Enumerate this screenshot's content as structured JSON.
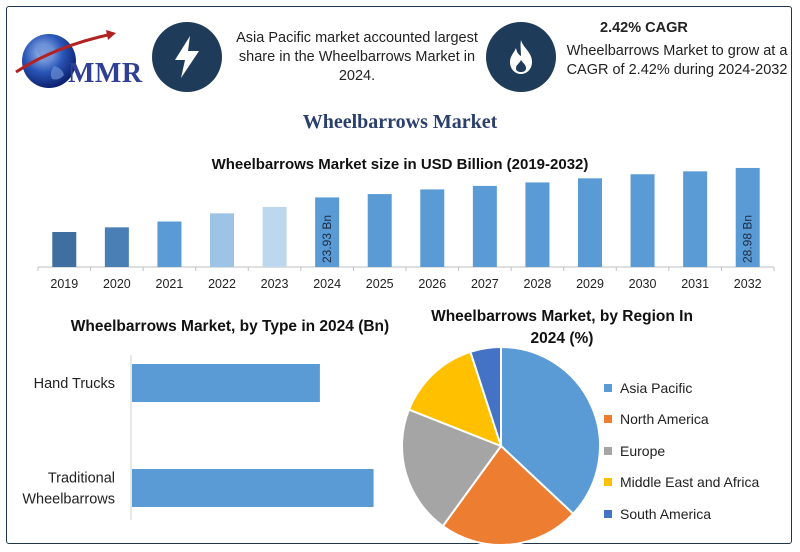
{
  "header": {
    "logo_text": "MMR",
    "info1_text": "Asia Pacific market accounted largest share in the Wheelbarrows Market in 2024.",
    "info2_title": "2.42% CAGR",
    "info2_text": "Wheelbarrows Market to grow at a CAGR of 2.42% during 2024-2032",
    "icon1": "lightning-bolt-icon",
    "icon2": "flame-icon",
    "badge_color": "#1f3b5a"
  },
  "main_title": "Wheelbarrows Market",
  "chart_data": [
    {
      "type": "bar",
      "title": "Wheelbarrows Market size in USD Billion (2019-2032)",
      "categories": [
        "2019",
        "2020",
        "2021",
        "2022",
        "2023",
        "2024",
        "2025",
        "2026",
        "2027",
        "2028",
        "2029",
        "2030",
        "2031",
        "2032"
      ],
      "values": [
        18.0,
        18.8,
        19.8,
        21.2,
        22.3,
        23.93,
        24.5,
        25.3,
        25.9,
        26.5,
        27.2,
        27.9,
        28.4,
        28.98
      ],
      "colors": [
        "#3f6f9e",
        "#4a7fb5",
        "#5b9bd5",
        "#9dc3e6",
        "#bdd7ee",
        "#5b9bd5",
        "#5b9bd5",
        "#5b9bd5",
        "#5b9bd5",
        "#5b9bd5",
        "#5b9bd5",
        "#5b9bd5",
        "#5b9bd5",
        "#5b9bd5"
      ],
      "data_labels": {
        "2024": "23.93 Bn",
        "2032": "28.98 Bn"
      },
      "xlabel": "",
      "ylabel": "",
      "ylim": [
        12,
        30
      ]
    },
    {
      "type": "bar",
      "orientation": "horizontal",
      "title": "Wheelbarrows Market, by Type in 2024 (Bn)",
      "categories": [
        "Hand Trucks",
        "Traditional Wheelbarrows"
      ],
      "values": [
        14.0,
        18.0
      ],
      "xlim": [
        0,
        19
      ],
      "color": "#5b9bd5"
    },
    {
      "type": "pie",
      "title": "Wheelbarrows Market, by Region In 2024 (%)",
      "categories": [
        "Asia Pacific",
        "North America",
        "Europe",
        "Middle East and Africa",
        "South America"
      ],
      "values": [
        37,
        23,
        21,
        14,
        5
      ],
      "colors": [
        "#5b9bd5",
        "#ed7d31",
        "#a5a5a5",
        "#ffc000",
        "#4472c4"
      ],
      "legend": "right"
    }
  ]
}
